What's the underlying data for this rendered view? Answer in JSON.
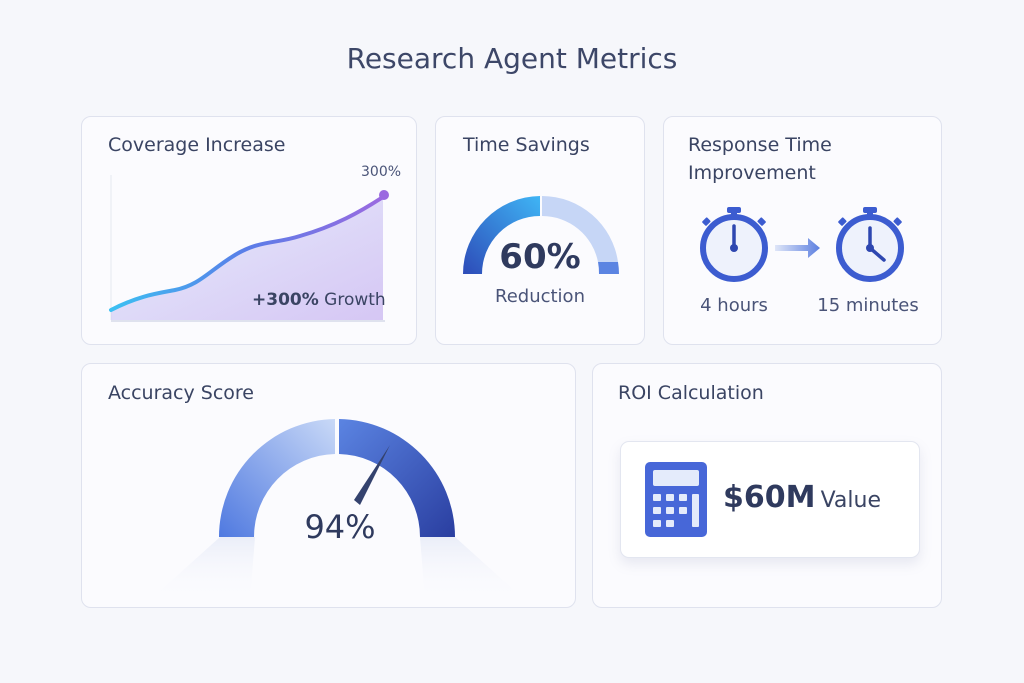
{
  "page": {
    "title": "Research Agent Metrics"
  },
  "coverage": {
    "title": "Coverage Increase",
    "end_label": "300%",
    "growth_value": "+300%",
    "growth_label": "Growth",
    "line_colors": [
      "#3cc0f2",
      "#5a7de8",
      "#9b6ae0"
    ]
  },
  "time_savings": {
    "title": "Time Savings",
    "value": "60%",
    "label": "Reduction",
    "percent": 60
  },
  "response_time": {
    "title_line1": "Response Time",
    "title_line2": "Improvement",
    "before": "4 hours",
    "after": "15 minutes"
  },
  "accuracy": {
    "title": "Accuracy Score",
    "value": "94%",
    "percent": 94
  },
  "roi": {
    "title": "ROI Calculation",
    "value": "$60M",
    "label": "Value",
    "icon": "calculator-icon"
  },
  "colors": {
    "accent": "#3d5fd6",
    "light_accent": "#c3d3f6",
    "text": "#3a4463"
  }
}
